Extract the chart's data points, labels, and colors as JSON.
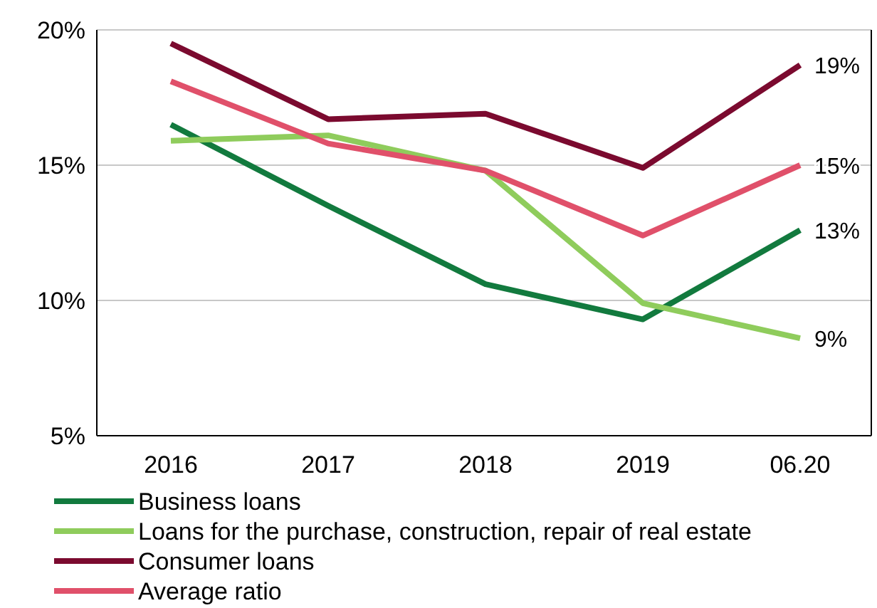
{
  "chart_data": {
    "type": "line",
    "categories": [
      "2016",
      "2017",
      "2018",
      "2019",
      "06.20"
    ],
    "series": [
      {
        "name": "Business loans",
        "color": "#127a3e",
        "values": [
          16.5,
          13.5,
          10.6,
          9.3,
          12.6
        ],
        "value_labels": [
          null,
          null,
          null,
          null,
          "13%"
        ]
      },
      {
        "name": "Loans for the purchase, construction, repair of real estate",
        "color": "#8fcc5c",
        "values": [
          15.9,
          16.1,
          14.8,
          9.9,
          8.6
        ],
        "value_labels": [
          null,
          null,
          null,
          null,
          "9%"
        ]
      },
      {
        "name": "Consumer loans",
        "color": "#7b0a2f",
        "values": [
          19.5,
          16.7,
          16.9,
          14.9,
          18.7
        ],
        "value_labels": [
          null,
          null,
          null,
          null,
          "19%"
        ]
      },
      {
        "name": "Average ratio",
        "color": "#e0506a",
        "values": [
          18.1,
          15.8,
          14.8,
          12.4,
          15.0
        ],
        "value_labels": [
          null,
          null,
          null,
          null,
          "15%"
        ]
      }
    ],
    "ylim": [
      5,
      20
    ],
    "yticks": [
      {
        "value": 5,
        "label": "5%"
      },
      {
        "value": 10,
        "label": "10%"
      },
      {
        "value": 15,
        "label": "15%"
      },
      {
        "value": 20,
        "label": "20%"
      }
    ],
    "grid": "y",
    "legend": "bottom",
    "marker": "none",
    "line_style": "solid"
  }
}
